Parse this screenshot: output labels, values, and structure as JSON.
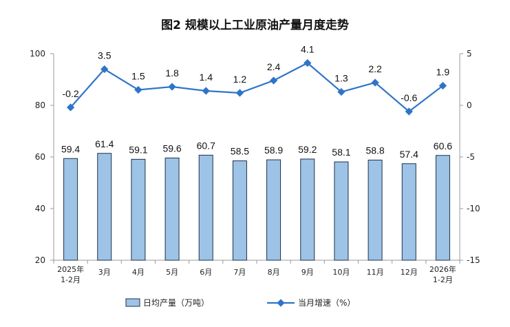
{
  "chart_data": {
    "type": "bar",
    "title": "图2  规模以上工业原油产量月度走势",
    "categories": [
      [
        "2025年",
        "1-2月"
      ],
      [
        "3月"
      ],
      [
        "4月"
      ],
      [
        "5月"
      ],
      [
        "6月"
      ],
      [
        "7月"
      ],
      [
        "8月"
      ],
      [
        "9月"
      ],
      [
        "10月"
      ],
      [
        "11月"
      ],
      [
        "12月"
      ],
      [
        "2026年",
        "1-2月"
      ]
    ],
    "series": [
      {
        "name": "日均产量（万吨）",
        "type": "bar",
        "axis": "left",
        "values": [
          59.4,
          61.4,
          59.1,
          59.6,
          60.7,
          58.5,
          58.9,
          59.2,
          58.1,
          58.8,
          57.4,
          60.6
        ]
      },
      {
        "name": "当月增速（%）",
        "type": "line",
        "axis": "right",
        "values": [
          -0.2,
          3.5,
          1.5,
          1.8,
          1.4,
          1.2,
          2.4,
          4.1,
          1.3,
          2.2,
          -0.6,
          1.9
        ]
      }
    ],
    "y_left": {
      "range": [
        20,
        100
      ],
      "ticks": [
        20,
        40,
        60,
        80,
        100
      ]
    },
    "y_right": {
      "range": [
        -15,
        5
      ],
      "ticks": [
        -15,
        -10,
        -5,
        0,
        5
      ]
    },
    "legend_position": "bottom",
    "grid": false,
    "colors": {
      "bar_fill": "#9dc3e6",
      "bar_stroke": "#1f2f4a",
      "line": "#2e75c8"
    }
  }
}
